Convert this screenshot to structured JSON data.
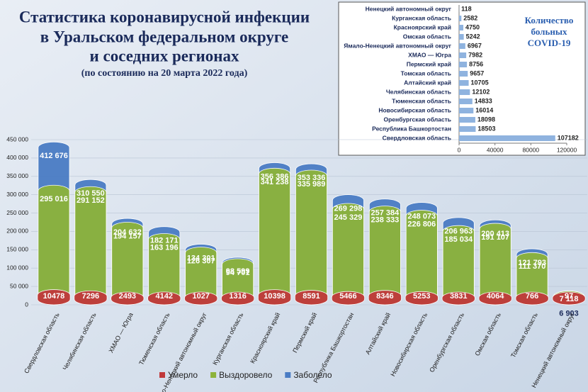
{
  "chart_data": [
    {
      "type": "bar",
      "title": [
        "Статистика коронавирусной инфекции",
        "в Уральском федеральном округе",
        "и соседних регионах"
      ],
      "subtitle": "(по состоянию на 20 марта 2022 года)",
      "categories": [
        "Свердловская область",
        "Челябинская область",
        "ХМАО — Югра",
        "Тюменская область",
        "Ямало-Ненецкий автономный округ",
        "Курганская область",
        "Красноярский край",
        "Пермский край",
        "Республика Башкортостан",
        "Алтайский край",
        "Новосибирская область",
        "Оренбургская область",
        "Омская область",
        "Томская область",
        "Ненецкий автономный округ"
      ],
      "series": [
        {
          "name": "Умерло",
          "color": "#c0393b",
          "values": [
            10478,
            7296,
            2493,
            4142,
            1027,
            1316,
            10398,
            8591,
            5466,
            8346,
            5253,
            3831,
            4064,
            766,
            97
          ]
        },
        {
          "name": "Выздоровело",
          "color": "#8db33a",
          "values": [
            295016,
            291152,
            194157,
            163196,
            126307,
            94701,
            341238,
            335989,
            245329,
            238333,
            226806,
            185034,
            191107,
            111370,
            6903
          ],
          "value_labels": [
            "295 016",
            "291 152",
            "194 157",
            "163 196",
            "126 307",
            "94 701",
            "341 238",
            "335 989",
            "245 329",
            "238 333",
            "226 806",
            "185 034",
            "191 107",
            "111 370",
            "6 903"
          ]
        },
        {
          "name": "Заболело",
          "color": "#4a7cc4",
          "values": [
            412676,
            310550,
            204632,
            182171,
            134301,
            98599,
            356386,
            353336,
            269298,
            257384,
            248073,
            206963,
            200413,
            121793,
            7118
          ],
          "value_labels": [
            "412 676",
            "310 550",
            "204 632",
            "182 171",
            "134 301",
            "98 599",
            "356 386",
            "353 336",
            "269 298",
            "257 384",
            "248 073",
            "206 963",
            "200 413",
            "121 793",
            "7 118"
          ]
        }
      ],
      "ylim": [
        0,
        450000
      ],
      "yticks": [
        0,
        {
          "value": 50000,
          "label": "50 000"
        },
        {
          "value": 100000,
          "label": "100 000"
        },
        {
          "value": 150000,
          "label": "150 000"
        },
        {
          "value": 200000,
          "label": "200 000"
        },
        {
          "value": 250000,
          "label": "250 000"
        },
        {
          "value": 300000,
          "label": "300 000"
        },
        {
          "value": 350000,
          "label": "350 000"
        },
        {
          "value": 400000,
          "label": "400 000"
        },
        {
          "value": 450000,
          "label": "450 000"
        }
      ],
      "grid": true
    },
    {
      "type": "hbar",
      "title": [
        "Количество",
        "больных",
        "COVID-19"
      ],
      "categories": [
        "Ненецкий автономный округ",
        "Курганская область",
        "Красноярский край",
        "Омская область",
        "Ямало-Ненецкий автономный округ",
        "ХМАО — Югра",
        "Пермский край",
        "Томская область",
        "Алтайский край",
        "Челябинская область",
        "Тюменская область",
        "Новосибирская область",
        "Оренбургская область",
        "Республика Башкортостан",
        "Свердловская область"
      ],
      "values": [
        118,
        2582,
        4750,
        5242,
        6967,
        7982,
        8756,
        9657,
        10705,
        12102,
        14833,
        16014,
        18098,
        18503,
        107182
      ],
      "color": "#8fb3df",
      "xlim": [
        0,
        120000
      ],
      "xticks": [
        0,
        40000,
        80000,
        120000
      ]
    }
  ]
}
